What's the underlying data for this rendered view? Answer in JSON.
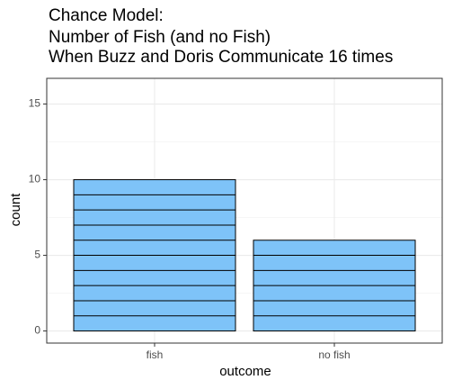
{
  "chart_data": {
    "type": "bar",
    "title": [
      "Chance Model:",
      "Number of Fish (and no Fish)",
      "When Buzz and Doris Communicate 16 times"
    ],
    "x_label": "outcome",
    "y_label": "count",
    "categories": [
      "fish",
      "no fish"
    ],
    "values": [
      10,
      6
    ],
    "color": "#7ec3f8",
    "ylim": [
      -0.8,
      16.7
    ],
    "yticks": [
      0,
      5,
      10,
      15
    ],
    "minor_yticks": [
      2.5,
      7.5,
      12.5
    ],
    "grid": true
  }
}
